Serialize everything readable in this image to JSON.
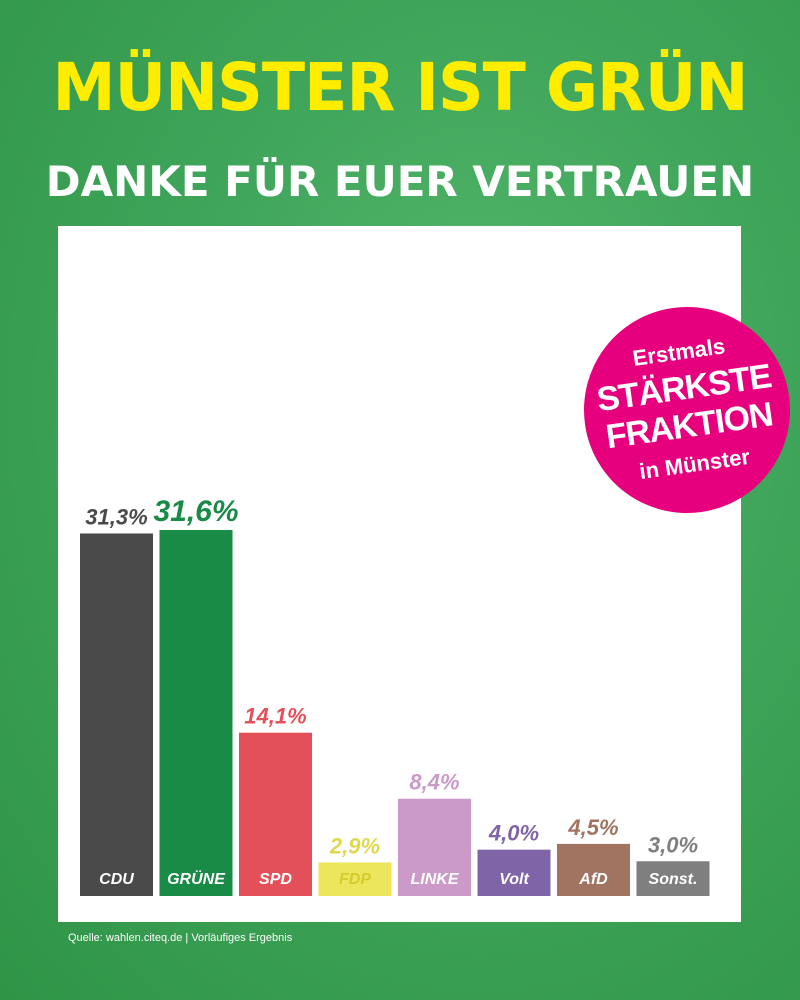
{
  "headline": "MÜNSTER IST GRÜN",
  "subline": "DANKE FÜR EUER VERTRAUEN",
  "badge": {
    "line1": "Erstmals",
    "line2": "STÄRKSTE",
    "line3": "FRAKTION",
    "line4": "in Münster"
  },
  "source": "Quelle: wahlen.citeq.de | Vorläufiges Ergebnis",
  "chart_data": {
    "type": "bar",
    "title": "",
    "xlabel": "",
    "ylabel": "",
    "ylim": [
      0,
      31.6
    ],
    "grid": false,
    "categories": [
      "CDU",
      "GRÜNE",
      "SPD",
      "FDP",
      "LINKE",
      "Volt",
      "AfD",
      "Sonst."
    ],
    "values": [
      31.3,
      31.6,
      14.1,
      2.9,
      8.4,
      4.0,
      4.5,
      3.0
    ],
    "value_labels": [
      "31,3%",
      "31,6%",
      "14,1%",
      "2,9%",
      "8,4%",
      "4,0%",
      "4,5%",
      "3,0%"
    ],
    "colors": [
      "#4a4a4a",
      "#1a8a47",
      "#e4505a",
      "#ece65c",
      "#cc9ac9",
      "#8064a8",
      "#a07460",
      "#7f7f7f"
    ],
    "label_colors": [
      "#4a4a4a",
      "#1a8a47",
      "#e4505a",
      "#e0d84c",
      "#cc9ac9",
      "#8064a8",
      "#a07460",
      "#7f7f7f"
    ],
    "category_label_colors": [
      "#ffffff",
      "#ffffff",
      "#ffffff",
      "#d6cc2e",
      "#ffffff",
      "#ffffff",
      "#ffffff",
      "#ffffff"
    ],
    "highlight_index": 1
  }
}
